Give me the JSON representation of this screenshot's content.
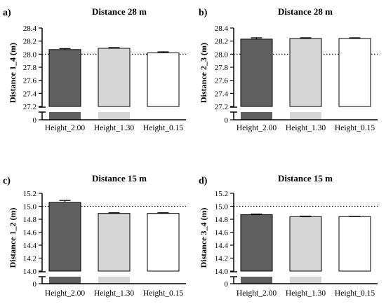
{
  "colors": {
    "height_2_00": "#5f5f5f",
    "height_1_30": "#d6d6d6",
    "height_0_15": "#ffffff",
    "axis": "#000000"
  },
  "chart_data": [
    {
      "type": "bar",
      "panel_label": "a)",
      "title": "Distance 28 m",
      "ylabel": "Distance 1_4 (m)",
      "categories": [
        "Height_2.00",
        "Height_1.30",
        "Height_0.15"
      ],
      "values": [
        28.07,
        28.09,
        28.02
      ],
      "errors": [
        0.015,
        0.01,
        0.015
      ],
      "reference_line": 28.0,
      "ylim": [
        27.2,
        28.4
      ],
      "yticks": [
        27.2,
        27.4,
        27.6,
        27.8,
        28.0,
        28.2,
        28.4
      ],
      "ytick_labels": [
        "27.2",
        "27.4",
        "27.6",
        "27.8",
        "28.0",
        "28.2",
        "28.4"
      ],
      "broken_axis_base": "0"
    },
    {
      "type": "bar",
      "panel_label": "b)",
      "title": "Distance 28 m",
      "ylabel": "Distance 2_3 (m)",
      "categories": [
        "Height_2.00",
        "Height_1.30",
        "Height_0.15"
      ],
      "values": [
        28.23,
        28.24,
        28.24
      ],
      "errors": [
        0.02,
        0.01,
        0.01
      ],
      "reference_line": 28.0,
      "ylim": [
        27.2,
        28.4
      ],
      "yticks": [
        27.2,
        27.4,
        27.6,
        27.8,
        28.0,
        28.2,
        28.4
      ],
      "ytick_labels": [
        "27.2",
        "27.4",
        "27.6",
        "27.8",
        "28.0",
        "28.2",
        "28.4"
      ],
      "broken_axis_base": "0"
    },
    {
      "type": "bar",
      "panel_label": "c)",
      "title": "Distance 15 m",
      "ylabel": "Distance 1_2 (m)",
      "categories": [
        "Height_2.00",
        "Height_1.30",
        "Height_0.15"
      ],
      "values": [
        15.06,
        14.89,
        14.89
      ],
      "errors": [
        0.03,
        0.01,
        0.01
      ],
      "reference_line": 15.0,
      "ylim": [
        14.0,
        15.2
      ],
      "yticks": [
        14.0,
        14.2,
        14.4,
        14.6,
        14.8,
        15.0,
        15.2
      ],
      "ytick_labels": [
        "14.0",
        "14.2",
        "14.4",
        "14.6",
        "14.8",
        "15.0",
        "15.2"
      ],
      "broken_axis_base": "0"
    },
    {
      "type": "bar",
      "panel_label": "d)",
      "title": "Distance 15 m",
      "ylabel": "Distance 3_4 (m)",
      "categories": [
        "Height_2.00",
        "Height_1.30",
        "Height_0.15"
      ],
      "values": [
        14.87,
        14.84,
        14.84
      ],
      "errors": [
        0.01,
        0.008,
        0.005
      ],
      "reference_line": 15.0,
      "ylim": [
        14.0,
        15.2
      ],
      "yticks": [
        14.0,
        14.2,
        14.4,
        14.6,
        14.8,
        15.0,
        15.2
      ],
      "ytick_labels": [
        "14.0",
        "14.2",
        "14.4",
        "14.6",
        "14.8",
        "15.0",
        "15.2"
      ],
      "broken_axis_base": "0"
    }
  ]
}
